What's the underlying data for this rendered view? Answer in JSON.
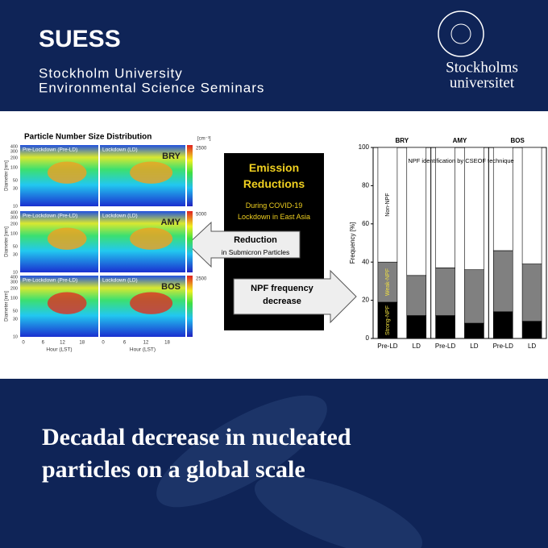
{
  "header": {
    "title": "SUESS",
    "subtitle": [
      "Stockholm University",
      "Environmental Science Seminars"
    ],
    "logo": [
      "Stockholms",
      "universitet"
    ]
  },
  "figure": {
    "left_title": "Particle Number Size Distribution",
    "panel_labels": [
      "Pre-Lockdown (Pre-LD)",
      "Lockdown (LD)"
    ],
    "sites": [
      "BRY",
      "AMY",
      "BOS"
    ],
    "colorbar_unit": "[cm⁻³]",
    "colorbar_max": [
      2500,
      5000,
      2500
    ],
    "diameter_label": "Diameter [nm]",
    "diameter_ticks": [
      "400",
      "300",
      "200",
      "100",
      "50",
      "30",
      "10"
    ],
    "hour_label": "Hour (LST)",
    "hour_ticks": [
      "0",
      "6",
      "12",
      "18"
    ],
    "center_box": {
      "title": "Emission Reductions",
      "subtitle": "During COVID-19 Lockdown in East Asia"
    },
    "left_arrow": {
      "title": "Reduction",
      "subtitle": "in Submicron Particles"
    },
    "right_arrow": "NPF frequency decrease"
  },
  "chart_data": {
    "type": "bar",
    "stacked": true,
    "annotation": "NPF identification by CSEOF technique",
    "ylabel": "Frequency [%]",
    "groups": [
      "BRY",
      "AMY",
      "BOS"
    ],
    "categories": [
      "Pre-LD",
      "LD",
      "Pre-LD",
      "LD",
      "Pre-LD",
      "LD"
    ],
    "series": [
      {
        "name": "Strong-NPF",
        "color": "#000000",
        "values": [
          19,
          12,
          12,
          8,
          14,
          9
        ]
      },
      {
        "name": "Weak-NPF",
        "color": "#808080",
        "values": [
          21,
          21,
          25,
          28,
          32,
          30
        ]
      },
      {
        "name": "Non-NPF",
        "color": "#ffffff",
        "values": [
          60,
          67,
          63,
          64,
          54,
          61
        ]
      }
    ],
    "ylim": [
      0,
      100
    ],
    "yticks": [
      0,
      20,
      40,
      60,
      80,
      100
    ]
  },
  "headline": [
    "Decadal decrease in nucleated",
    "particles on a global scale"
  ]
}
